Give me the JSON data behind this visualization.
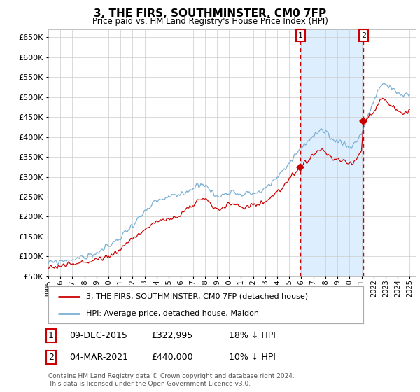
{
  "title": "3, THE FIRS, SOUTHMINSTER, CM0 7FP",
  "subtitle": "Price paid vs. HM Land Registry's House Price Index (HPI)",
  "ylim": [
    50000,
    670000
  ],
  "yticks": [
    50000,
    100000,
    150000,
    200000,
    250000,
    300000,
    350000,
    400000,
    450000,
    500000,
    550000,
    600000,
    650000
  ],
  "xlim_start": 1995.0,
  "xlim_end": 2025.5,
  "marker1_x": 2015.94,
  "marker1_price": 322995,
  "marker2_x": 2021.17,
  "marker2_price": 440000,
  "legend_house": "3, THE FIRS, SOUTHMINSTER, CM0 7FP (detached house)",
  "legend_hpi": "HPI: Average price, detached house, Maldon",
  "row1_date": "09-DEC-2015",
  "row1_price": "£322,995",
  "row1_hpi": "18% ↓ HPI",
  "row2_date": "04-MAR-2021",
  "row2_price": "£440,000",
  "row2_hpi": "10% ↓ HPI",
  "copyright": "Contains HM Land Registry data © Crown copyright and database right 2024.\nThis data is licensed under the Open Government Licence v3.0.",
  "house_color": "#cc0000",
  "hpi_color": "#7ab0d4",
  "grid_color": "#cccccc",
  "vline_color": "#cc0000",
  "span_color": "#ddeeff",
  "bg_color": "#ffffff"
}
